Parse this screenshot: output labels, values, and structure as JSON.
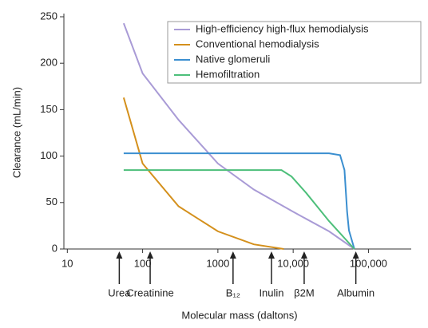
{
  "chart_data": {
    "type": "line",
    "xlabel": "Molecular mass (daltons)",
    "ylabel": "Clearance (mL/min)",
    "xscale": "log",
    "xlim": [
      9,
      370000
    ],
    "ylim": [
      0,
      250
    ],
    "xticks": [
      10,
      100,
      1000,
      {
        "value": 10000,
        "label": "10,000"
      },
      {
        "value": 100000,
        "label": "100,000"
      }
    ],
    "yticks": [
      0,
      50,
      100,
      150,
      200,
      250
    ],
    "legend": "upper right",
    "series": [
      {
        "name": "High-efficiency high-flux hemodialysis",
        "color": "#a99bd6",
        "x": [
          56,
          100,
          300,
          1000,
          3000,
          10000,
          30000,
          65000
        ],
        "values": [
          243,
          189,
          139,
          92,
          64,
          40,
          19,
          0
        ]
      },
      {
        "name": "Conventional hemodialysis",
        "color": "#d4901c",
        "x": [
          56,
          100,
          300,
          1000,
          3000,
          7500
        ],
        "values": [
          163,
          92,
          46,
          19,
          5,
          0
        ]
      },
      {
        "name": "Native glomeruli",
        "color": "#3b8fd0",
        "x": [
          56,
          30000,
          42000,
          48000,
          52000,
          55000,
          65000
        ],
        "values": [
          103,
          103,
          101,
          85,
          40,
          20,
          0
        ]
      },
      {
        "name": "Hemofiltration",
        "color": "#4dbf7a",
        "x": [
          56,
          7000,
          9500,
          15000,
          30000,
          65000
        ],
        "values": [
          85,
          85,
          78,
          60,
          30,
          0
        ]
      }
    ],
    "markers": [
      {
        "x": 49,
        "label": "Urea"
      },
      {
        "x": 126,
        "label": "Creatinine"
      },
      {
        "x": 1590,
        "label": "B₁₂"
      },
      {
        "x": 5150,
        "label": "Inulin"
      },
      {
        "x": 14000,
        "label": "β2M"
      },
      {
        "x": 68000,
        "label": "Albumin"
      }
    ]
  }
}
